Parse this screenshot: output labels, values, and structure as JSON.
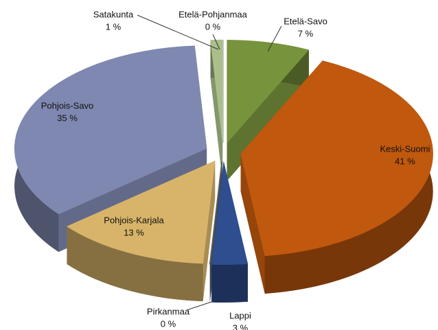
{
  "chart_data": {
    "type": "pie3d",
    "categories": [
      "Etelä-Savo",
      "Keski-Suomi",
      "Lappi",
      "Pirkanmaa",
      "Pohjois-Karjala",
      "Pohjois-Savo",
      "Satakunta",
      "Etelä-Pohjanmaa"
    ],
    "values": [
      7,
      41,
      3,
      0,
      13,
      35,
      1,
      0
    ],
    "value_labels": [
      "7 %",
      "41 %",
      "3 %",
      "0 %",
      "13 %",
      "35 %",
      "1 %",
      "0 %"
    ],
    "colors": [
      "#77933c",
      "#c0580e",
      "#2e4e8f",
      "#5a5a5a",
      "#d8b46a",
      "#7f88b0",
      "#a9c08a",
      "#c8c8c8"
    ]
  }
}
